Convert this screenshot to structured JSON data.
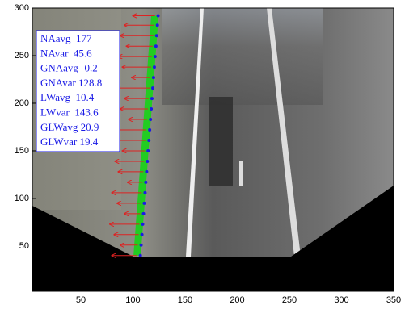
{
  "chart_data": {
    "type": "image_overlay",
    "xlim": [
      3.5,
      350
    ],
    "ylim": [
      2.5,
      300
    ],
    "xticks": [
      50,
      100,
      150,
      200,
      250,
      300,
      350
    ],
    "yticks": [
      50,
      100,
      150,
      200,
      250,
      300
    ],
    "boundary": {
      "color": "#22cc22",
      "point_color": "#1a1ae6",
      "x": [
        104,
        104.7,
        105.5,
        106.2,
        107,
        107.7,
        108.5,
        109.2,
        110,
        110.7,
        111.4,
        112.2,
        112.9,
        113.7,
        114.4,
        115.1,
        115.9,
        116.6,
        117.4,
        118.1,
        118.9,
        119.6,
        120.3,
        121
      ],
      "y": [
        40,
        51,
        62,
        73,
        84,
        95,
        106,
        117,
        128,
        139,
        150,
        161,
        172,
        183,
        194,
        205,
        216,
        227,
        238,
        249,
        260,
        271,
        282,
        292
      ]
    },
    "arrows": {
      "color": "#dd2222",
      "x": [
        80,
        88,
        82,
        78,
        92,
        85,
        80,
        95,
        86,
        83,
        90,
        81,
        84,
        96,
        88,
        92,
        85,
        99,
        90,
        86,
        94,
        88,
        92,
        100
      ]
    },
    "stats": [
      "NAavg  177",
      "NAvar  45.6",
      "GNAavg -0.2",
      "GNAvar 128.8",
      "LWavg  10.4",
      "LWvar  143.6",
      "GLWavg 20.9",
      "GLWvar 19.4"
    ]
  }
}
